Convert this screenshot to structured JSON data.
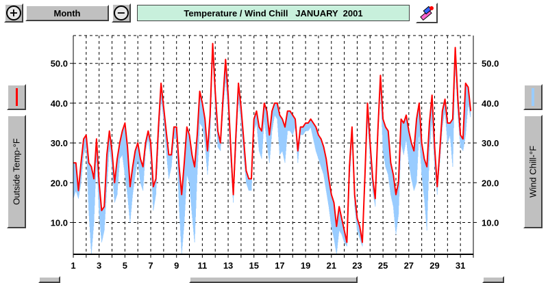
{
  "toolbar": {
    "zoom_in_symbol": "+",
    "zoom_out_symbol": "−",
    "period_label": "Month"
  },
  "chart_title": "Temperature / Wind Chill   JANUARY  2001",
  "left_axis_button_label": "Outside Temp-°F",
  "right_axis_button_label": "Wind Chill-°F",
  "colors": {
    "temp_line": "#ff0000",
    "wind_chill_fill": "#99ccff",
    "title_bg": "#c8f0dc",
    "button_face": "#c0c0c0"
  },
  "chart_data": {
    "type": "line",
    "title": "Temperature / Wind Chill   JANUARY  2001",
    "x_ticks": [
      "1",
      "3",
      "5",
      "7",
      "9",
      "11",
      "13",
      "15",
      "17",
      "19",
      "21",
      "23",
      "25",
      "27",
      "29",
      "31"
    ],
    "y_ticks": [
      "10.0",
      "20.0",
      "30.0",
      "40.0",
      "50.0"
    ],
    "xlim": [
      1,
      32
    ],
    "ylim": [
      2,
      57
    ],
    "grid": true,
    "series": [
      {
        "name": "Outside Temp-°F",
        "color": "#ff0000",
        "points": [
          [
            1,
            25
          ],
          [
            1.2,
            25
          ],
          [
            1.4,
            18
          ],
          [
            1.6,
            25
          ],
          [
            1.8,
            31
          ],
          [
            2,
            32
          ],
          [
            2.2,
            25
          ],
          [
            2.4,
            24
          ],
          [
            2.6,
            21
          ],
          [
            2.8,
            31
          ],
          [
            3,
            20
          ],
          [
            3.2,
            13
          ],
          [
            3.4,
            14
          ],
          [
            3.6,
            27
          ],
          [
            3.8,
            33
          ],
          [
            4,
            28
          ],
          [
            4.2,
            20
          ],
          [
            4.4,
            26
          ],
          [
            4.6,
            30
          ],
          [
            4.8,
            33
          ],
          [
            5,
            35
          ],
          [
            5.2,
            29
          ],
          [
            5.4,
            19
          ],
          [
            5.6,
            24
          ],
          [
            5.8,
            28
          ],
          [
            6,
            30
          ],
          [
            6.2,
            26
          ],
          [
            6.4,
            24
          ],
          [
            6.6,
            30
          ],
          [
            6.8,
            33
          ],
          [
            7,
            30
          ],
          [
            7.2,
            19
          ],
          [
            7.4,
            21
          ],
          [
            7.6,
            34
          ],
          [
            7.8,
            45
          ],
          [
            8,
            39
          ],
          [
            8.2,
            33
          ],
          [
            8.4,
            27
          ],
          [
            8.6,
            27
          ],
          [
            8.8,
            34
          ],
          [
            9,
            34
          ],
          [
            9.2,
            24
          ],
          [
            9.4,
            17
          ],
          [
            9.6,
            25
          ],
          [
            9.8,
            34
          ],
          [
            10,
            32
          ],
          [
            10.2,
            27
          ],
          [
            10.4,
            24
          ],
          [
            10.6,
            32
          ],
          [
            10.8,
            43
          ],
          [
            11,
            40
          ],
          [
            11.2,
            36
          ],
          [
            11.4,
            28
          ],
          [
            11.6,
            37
          ],
          [
            11.8,
            55
          ],
          [
            12,
            43
          ],
          [
            12.2,
            33
          ],
          [
            12.4,
            30
          ],
          [
            12.6,
            41
          ],
          [
            12.8,
            51
          ],
          [
            13,
            42
          ],
          [
            13.2,
            29
          ],
          [
            13.4,
            17
          ],
          [
            13.6,
            32
          ],
          [
            13.8,
            45
          ],
          [
            14,
            39
          ],
          [
            14.2,
            31
          ],
          [
            14.4,
            23
          ],
          [
            14.6,
            21
          ],
          [
            14.8,
            21
          ],
          [
            15,
            36
          ],
          [
            15.2,
            38
          ],
          [
            15.4,
            34
          ],
          [
            15.6,
            33
          ],
          [
            15.8,
            40
          ],
          [
            16,
            38
          ],
          [
            16.2,
            32
          ],
          [
            16.4,
            38
          ],
          [
            16.6,
            40
          ],
          [
            16.8,
            40
          ],
          [
            17,
            37
          ],
          [
            17.2,
            36
          ],
          [
            17.4,
            34
          ],
          [
            17.6,
            38
          ],
          [
            17.8,
            38
          ],
          [
            18,
            37
          ],
          [
            18.2,
            36
          ],
          [
            18.4,
            28
          ],
          [
            18.6,
            34
          ],
          [
            18.8,
            34
          ],
          [
            19,
            35
          ],
          [
            19.2,
            35
          ],
          [
            19.4,
            36
          ],
          [
            19.6,
            35
          ],
          [
            19.8,
            34
          ],
          [
            20,
            32
          ],
          [
            20.2,
            31
          ],
          [
            20.4,
            29
          ],
          [
            20.6,
            26
          ],
          [
            20.8,
            21
          ],
          [
            21,
            17
          ],
          [
            21.2,
            15
          ],
          [
            21.4,
            9
          ],
          [
            21.6,
            14
          ],
          [
            21.8,
            11
          ],
          [
            22,
            8
          ],
          [
            22.2,
            5
          ],
          [
            22.4,
            24
          ],
          [
            22.6,
            34
          ],
          [
            22.8,
            17
          ],
          [
            23,
            11
          ],
          [
            23.2,
            9
          ],
          [
            23.4,
            5
          ],
          [
            23.6,
            22
          ],
          [
            23.8,
            40
          ],
          [
            24,
            30
          ],
          [
            24.2,
            21
          ],
          [
            24.4,
            16
          ],
          [
            24.6,
            33
          ],
          [
            24.8,
            47
          ],
          [
            25,
            36
          ],
          [
            25.2,
            34
          ],
          [
            25.4,
            33
          ],
          [
            25.6,
            25
          ],
          [
            25.8,
            22
          ],
          [
            26,
            17
          ],
          [
            26.2,
            20
          ],
          [
            26.4,
            36
          ],
          [
            26.6,
            35
          ],
          [
            26.8,
            37
          ],
          [
            27,
            33
          ],
          [
            27.2,
            30
          ],
          [
            27.4,
            28
          ],
          [
            27.6,
            36
          ],
          [
            27.8,
            40
          ],
          [
            28,
            30
          ],
          [
            28.2,
            26
          ],
          [
            28.4,
            24
          ],
          [
            28.6,
            35
          ],
          [
            28.8,
            42
          ],
          [
            29,
            29
          ],
          [
            29.2,
            19
          ],
          [
            29.4,
            28
          ],
          [
            29.6,
            38
          ],
          [
            29.8,
            41
          ],
          [
            30,
            35
          ],
          [
            30.2,
            35
          ],
          [
            30.4,
            36
          ],
          [
            30.6,
            54
          ],
          [
            30.8,
            41
          ],
          [
            31,
            32
          ],
          [
            31.2,
            31
          ],
          [
            31.4,
            45
          ],
          [
            31.6,
            44
          ],
          [
            31.8,
            38
          ]
        ]
      },
      {
        "name": "Wind Chill-°F",
        "color": "#99ccff",
        "points": [
          [
            1,
            16
          ],
          [
            1.2,
            18
          ],
          [
            1.4,
            16
          ],
          [
            1.6,
            20
          ],
          [
            1.8,
            27
          ],
          [
            2,
            29
          ],
          [
            2.2,
            13
          ],
          [
            2.4,
            2
          ],
          [
            2.6,
            10
          ],
          [
            2.8,
            27
          ],
          [
            3,
            12
          ],
          [
            3.2,
            5
          ],
          [
            3.4,
            8
          ],
          [
            3.6,
            19
          ],
          [
            3.8,
            29
          ],
          [
            4,
            24
          ],
          [
            4.2,
            15
          ],
          [
            4.4,
            17
          ],
          [
            4.6,
            26
          ],
          [
            4.8,
            27
          ],
          [
            5,
            22
          ],
          [
            5.2,
            17
          ],
          [
            5.4,
            10
          ],
          [
            5.6,
            17
          ],
          [
            5.8,
            22
          ],
          [
            6,
            26
          ],
          [
            6.2,
            20
          ],
          [
            6.4,
            18
          ],
          [
            6.6,
            28
          ],
          [
            6.8,
            31
          ],
          [
            7,
            26
          ],
          [
            7.2,
            13
          ],
          [
            7.4,
            17
          ],
          [
            7.6,
            30
          ],
          [
            7.8,
            41
          ],
          [
            8,
            36
          ],
          [
            8.2,
            28
          ],
          [
            8.4,
            21
          ],
          [
            8.6,
            24
          ],
          [
            8.8,
            31
          ],
          [
            9,
            31
          ],
          [
            9.2,
            14
          ],
          [
            9.4,
            2
          ],
          [
            9.6,
            10
          ],
          [
            9.8,
            22
          ],
          [
            10,
            20
          ],
          [
            10.2,
            12
          ],
          [
            10.4,
            5
          ],
          [
            10.6,
            22
          ],
          [
            10.8,
            35
          ],
          [
            11,
            34
          ],
          [
            11.2,
            30
          ],
          [
            11.4,
            22
          ],
          [
            11.6,
            31
          ],
          [
            11.8,
            52
          ],
          [
            12,
            39
          ],
          [
            12.2,
            29
          ],
          [
            12.4,
            28
          ],
          [
            12.6,
            38
          ],
          [
            12.8,
            46
          ],
          [
            13,
            38
          ],
          [
            13.2,
            25
          ],
          [
            13.4,
            15
          ],
          [
            13.6,
            28
          ],
          [
            13.8,
            41
          ],
          [
            14,
            35
          ],
          [
            14.2,
            27
          ],
          [
            14.4,
            20
          ],
          [
            14.6,
            18
          ],
          [
            14.8,
            18
          ],
          [
            15,
            33
          ],
          [
            15.2,
            35
          ],
          [
            15.4,
            28
          ],
          [
            15.6,
            26
          ],
          [
            15.8,
            36
          ],
          [
            16,
            30
          ],
          [
            16.2,
            25
          ],
          [
            16.4,
            33
          ],
          [
            16.6,
            37
          ],
          [
            16.8,
            36
          ],
          [
            17,
            27
          ],
          [
            17.2,
            28
          ],
          [
            17.4,
            25
          ],
          [
            17.6,
            33
          ],
          [
            17.8,
            33
          ],
          [
            18,
            32
          ],
          [
            18.2,
            34
          ],
          [
            18.4,
            25
          ],
          [
            18.6,
            32
          ],
          [
            18.8,
            32
          ],
          [
            19,
            33
          ],
          [
            19.2,
            33
          ],
          [
            19.4,
            34
          ],
          [
            19.6,
            31
          ],
          [
            19.8,
            28
          ],
          [
            20,
            26
          ],
          [
            20.2,
            24
          ],
          [
            20.4,
            22
          ],
          [
            20.6,
            18
          ],
          [
            20.8,
            14
          ],
          [
            21,
            9
          ],
          [
            21.2,
            6
          ],
          [
            21.4,
            2
          ],
          [
            21.6,
            8
          ],
          [
            21.8,
            7
          ],
          [
            22,
            5
          ],
          [
            22.2,
            4
          ],
          [
            22.4,
            20
          ],
          [
            22.6,
            31
          ],
          [
            22.8,
            14
          ],
          [
            23,
            8
          ],
          [
            23.2,
            6
          ],
          [
            23.4,
            4
          ],
          [
            23.6,
            19
          ],
          [
            23.8,
            36
          ],
          [
            24,
            26
          ],
          [
            24.2,
            18
          ],
          [
            24.4,
            14
          ],
          [
            24.6,
            30
          ],
          [
            24.8,
            44
          ],
          [
            25,
            28
          ],
          [
            25.2,
            24
          ],
          [
            25.4,
            22
          ],
          [
            25.6,
            17
          ],
          [
            25.8,
            14
          ],
          [
            26,
            7
          ],
          [
            26.2,
            12
          ],
          [
            26.4,
            30
          ],
          [
            26.6,
            27
          ],
          [
            26.8,
            31
          ],
          [
            27,
            25
          ],
          [
            27.2,
            21
          ],
          [
            27.4,
            18
          ],
          [
            27.6,
            20
          ],
          [
            27.8,
            33
          ],
          [
            28,
            22
          ],
          [
            28.2,
            16
          ],
          [
            28.4,
            8
          ],
          [
            28.6,
            28
          ],
          [
            28.8,
            36
          ],
          [
            29,
            24
          ],
          [
            29.2,
            17
          ],
          [
            29.4,
            25
          ],
          [
            29.6,
            34
          ],
          [
            29.8,
            38
          ],
          [
            30,
            30
          ],
          [
            30.2,
            32
          ],
          [
            30.4,
            24
          ],
          [
            30.6,
            50
          ],
          [
            30.8,
            37
          ],
          [
            31,
            29
          ],
          [
            31.2,
            28
          ],
          [
            31.4,
            32
          ],
          [
            31.6,
            40
          ],
          [
            31.8,
            36
          ]
        ]
      }
    ]
  }
}
